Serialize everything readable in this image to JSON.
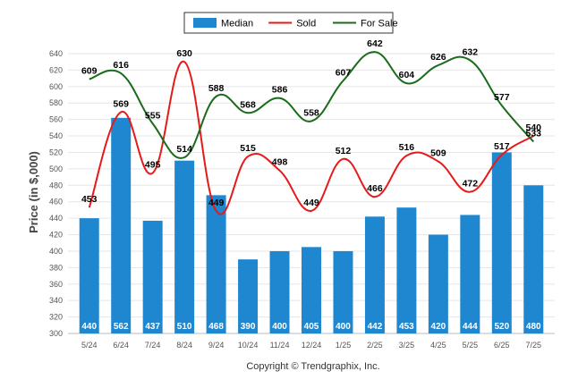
{
  "chart_data": {
    "type": "bar",
    "categories": [
      "5/24",
      "6/24",
      "7/24",
      "8/24",
      "9/24",
      "10/24",
      "11/24",
      "12/24",
      "1/25",
      "2/25",
      "3/25",
      "4/25",
      "5/25",
      "6/25",
      "7/25"
    ],
    "series": [
      {
        "name": "Median",
        "type": "bar",
        "color": "#1f87d0",
        "values": [
          440,
          562,
          437,
          510,
          468,
          390,
          400,
          405,
          400,
          442,
          453,
          420,
          444,
          520,
          480
        ]
      },
      {
        "name": "Sold",
        "type": "line",
        "color": "#e51a1a",
        "values": [
          453,
          569,
          495,
          630,
          449,
          515,
          498,
          449,
          512,
          466,
          516,
          509,
          472,
          517,
          540
        ]
      },
      {
        "name": "For Sale",
        "type": "line",
        "color": "#1a6b1a",
        "values": [
          609,
          616,
          555,
          514,
          588,
          568,
          586,
          558,
          607,
          642,
          604,
          626,
          632,
          577,
          533
        ]
      }
    ],
    "ylabel": "Price (in $,000)",
    "ylim": [
      300,
      640
    ],
    "yticks": [
      300,
      320,
      340,
      360,
      380,
      400,
      420,
      440,
      460,
      480,
      500,
      520,
      540,
      560,
      580,
      600,
      620,
      640
    ],
    "grid": true,
    "legend": "top-center"
  },
  "footer": {
    "copyright": "Copyright © Trendgraphix, Inc."
  }
}
